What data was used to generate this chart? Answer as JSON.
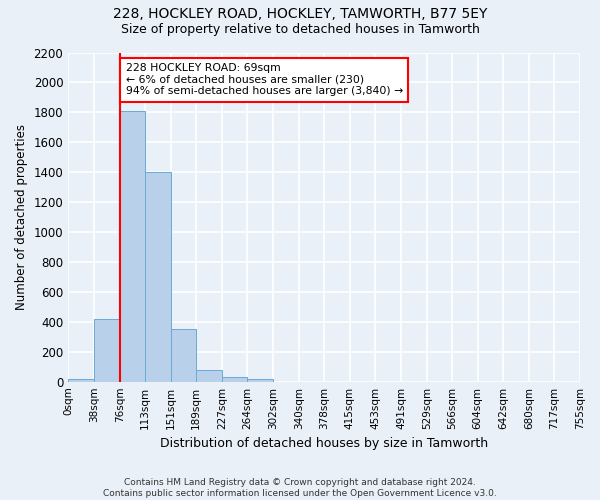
{
  "title1": "228, HOCKLEY ROAD, HOCKLEY, TAMWORTH, B77 5EY",
  "title2": "Size of property relative to detached houses in Tamworth",
  "xlabel": "Distribution of detached houses by size in Tamworth",
  "ylabel": "Number of detached properties",
  "bin_labels": [
    "0sqm",
    "38sqm",
    "76sqm",
    "113sqm",
    "151sqm",
    "189sqm",
    "227sqm",
    "264sqm",
    "302sqm",
    "340sqm",
    "378sqm",
    "415sqm",
    "453sqm",
    "491sqm",
    "529sqm",
    "566sqm",
    "604sqm",
    "642sqm",
    "680sqm",
    "717sqm",
    "755sqm"
  ],
  "bar_values": [
    15,
    420,
    1810,
    1400,
    350,
    80,
    30,
    18,
    0,
    0,
    0,
    0,
    0,
    0,
    0,
    0,
    0,
    0,
    0,
    0
  ],
  "bar_color": "#b8d0ea",
  "bar_edge_color": "#6aaad4",
  "annotation_text": "228 HOCKLEY ROAD: 69sqm\n← 6% of detached houses are smaller (230)\n94% of semi-detached houses are larger (3,840) →",
  "annotation_box_color": "white",
  "annotation_box_edge": "red",
  "vline_x": 76,
  "vline_color": "red",
  "ylim": [
    0,
    2200
  ],
  "yticks": [
    0,
    200,
    400,
    600,
    800,
    1000,
    1200,
    1400,
    1600,
    1800,
    2000,
    2200
  ],
  "footer": "Contains HM Land Registry data © Crown copyright and database right 2024.\nContains public sector information licensed under the Open Government Licence v3.0.",
  "bg_color": "#eaf0f8",
  "grid_color": "#ffffff"
}
